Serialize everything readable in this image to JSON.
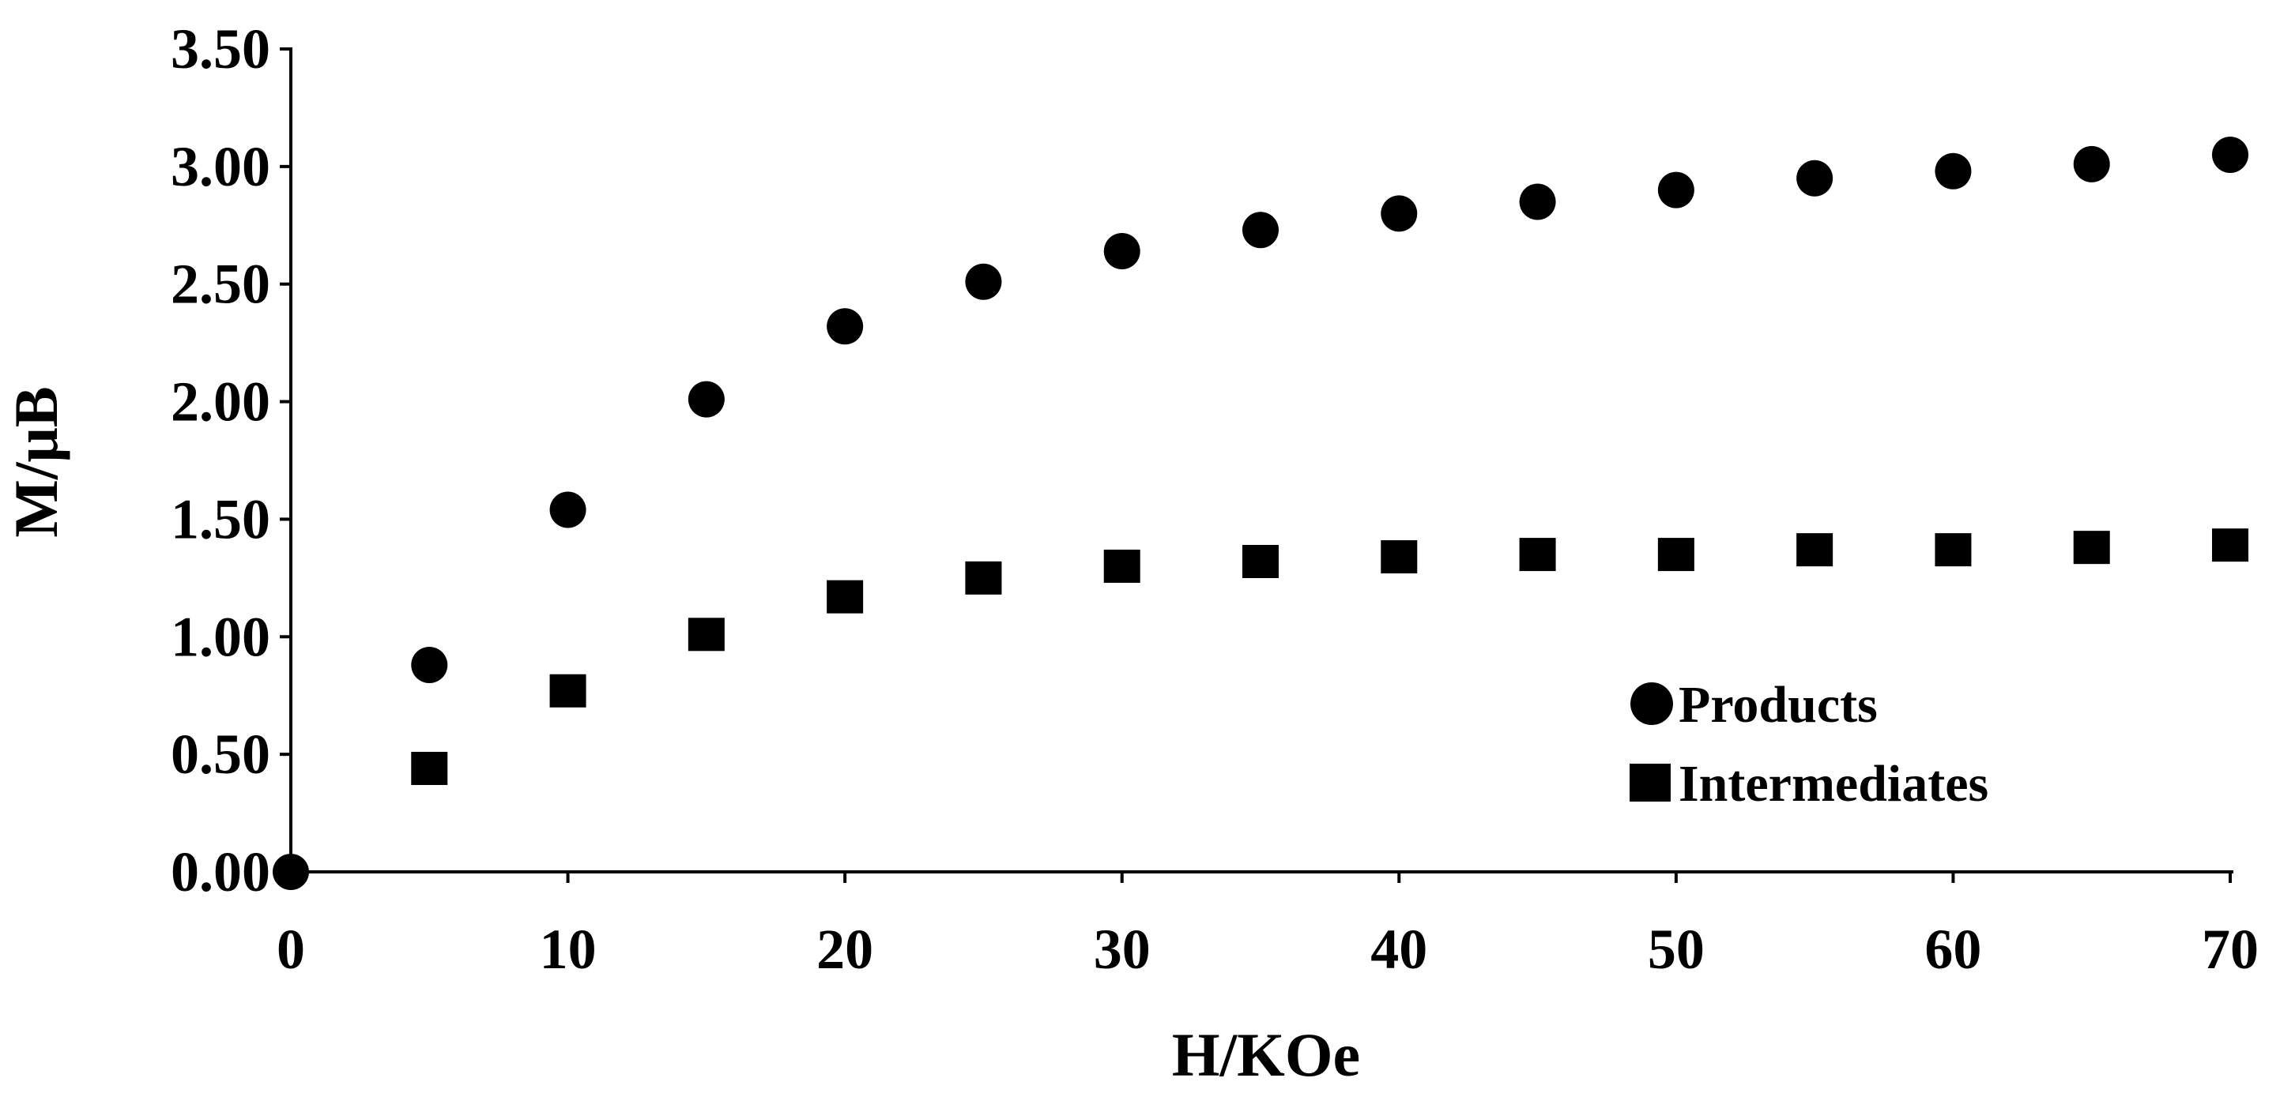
{
  "chart_data": {
    "type": "scatter",
    "title": "",
    "xlabel": "H/KOe",
    "ylabel": "M/μB",
    "xlim": [
      0,
      70
    ],
    "ylim": [
      0,
      3.5
    ],
    "x_ticks": [
      0,
      10,
      20,
      30,
      40,
      50,
      60,
      70
    ],
    "x_tick_labels": [
      "0",
      "10",
      "20",
      "30",
      "40",
      "50",
      "60",
      "70"
    ],
    "y_ticks": [
      0,
      0.5,
      1.0,
      1.5,
      2.0,
      2.5,
      3.0,
      3.5
    ],
    "y_tick_labels": [
      "0.00",
      "0.50",
      "1.00",
      "1.50",
      "2.00",
      "2.50",
      "3.00",
      "3.50"
    ],
    "grid": false,
    "legend_position": "bottom-right",
    "series": [
      {
        "name": "Products",
        "marker": "circle",
        "color": "#000000",
        "x": [
          0,
          5,
          10,
          15,
          20,
          25,
          30,
          35,
          40,
          45,
          50,
          55,
          60,
          65,
          70
        ],
        "y": [
          0.0,
          0.88,
          1.54,
          2.01,
          2.32,
          2.51,
          2.64,
          2.73,
          2.8,
          2.85,
          2.9,
          2.95,
          2.98,
          3.01,
          3.05
        ]
      },
      {
        "name": "Intermediates",
        "marker": "square",
        "color": "#000000",
        "x": [
          5,
          10,
          15,
          20,
          25,
          30,
          35,
          40,
          45,
          50,
          55,
          60,
          65,
          70
        ],
        "y": [
          0.44,
          0.77,
          1.01,
          1.17,
          1.25,
          1.3,
          1.32,
          1.34,
          1.35,
          1.35,
          1.37,
          1.37,
          1.38,
          1.39
        ]
      }
    ]
  }
}
